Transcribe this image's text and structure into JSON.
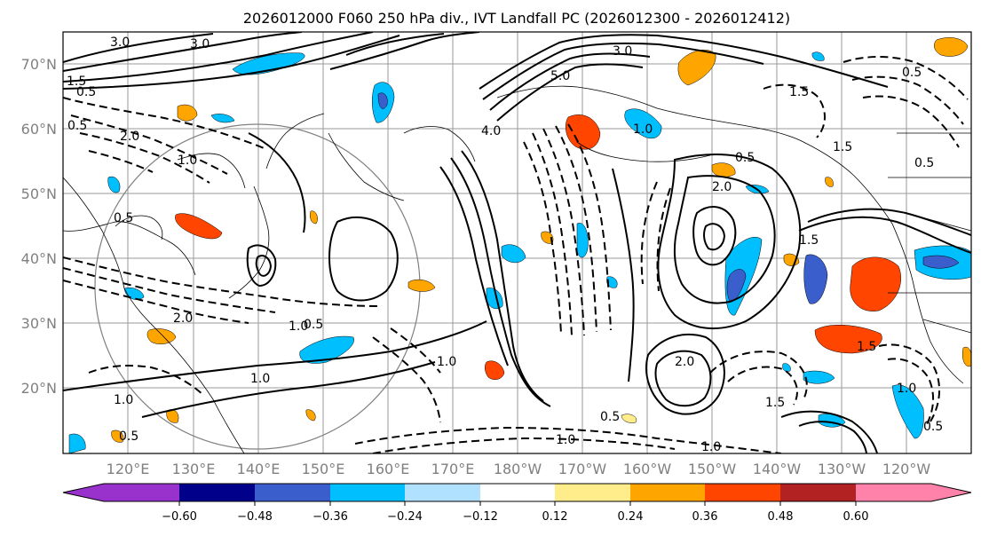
{
  "title": "2026012000 F060 250 hPa div., IVT Landfall PC (2026012300 - 2026012412)",
  "lat_labels": [
    "70°N",
    "60°N",
    "50°N",
    "40°N",
    "30°N",
    "20°N"
  ],
  "lon_labels": [
    "120°E",
    "130°E",
    "140°E",
    "150°E",
    "160°E",
    "170°E",
    "180°W",
    "170°W",
    "160°W",
    "150°W",
    "140°W",
    "130°W",
    "120°W"
  ],
  "contour_labels": [
    "3.0",
    "3.0",
    "1.5",
    "0.5",
    "0.5",
    "2.0",
    "1.0",
    "0.5",
    "5.0",
    "3.0",
    "4.0",
    "1.0",
    "0.5",
    "1.5",
    "2.0",
    "0.5",
    "1.5",
    "0.5",
    "2.0",
    "1.5",
    "1.0",
    "0.5",
    "1.0",
    "1.0",
    "2.0",
    "1.5",
    "1.0",
    "0.5",
    "1.0",
    "0.5",
    "1.0",
    "1.5",
    "1.0",
    "0.5"
  ],
  "colorbar": {
    "colors": [
      "#9932cc",
      "#00008b",
      "#3a5fcd",
      "#00bfff",
      "#b0e2ff",
      "#ffffff",
      "#ffec8b",
      "#ffa500",
      "#ff4500",
      "#b22222",
      "#ff82ab"
    ],
    "tick_labels": [
      "−0.60",
      "−0.48",
      "−0.36",
      "−0.24",
      "−0.12",
      "0.12",
      "0.24",
      "0.36",
      "0.48",
      "0.60"
    ]
  }
}
